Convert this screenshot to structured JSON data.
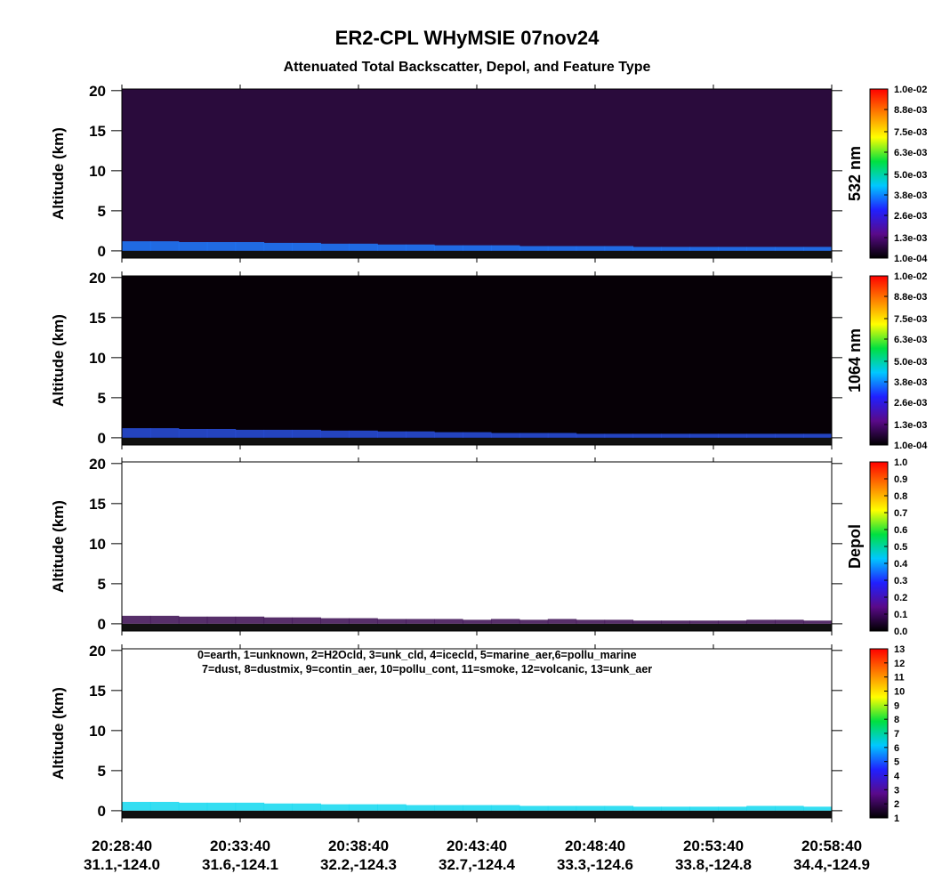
{
  "title": "ER2-CPL WHyMSIE 07nov24",
  "subtitle": "Attenuated Total Backscatter, Depol, and Feature Type",
  "xticks": [
    {
      "time": "20:28:40",
      "location": "31.1,-124.0"
    },
    {
      "time": "20:33:40",
      "location": "31.6,-124.1"
    },
    {
      "time": "20:38:40",
      "location": "32.2,-124.3"
    },
    {
      "time": "20:43:40",
      "location": "32.7,-124.4"
    },
    {
      "time": "20:48:40",
      "location": "33.3,-124.6"
    },
    {
      "time": "20:53:40",
      "location": "33.8,-124.8"
    },
    {
      "time": "20:58:40",
      "location": "34.4,-124.9"
    }
  ],
  "chart_data": [
    {
      "type": "heatmap",
      "ylabel": "Altitude (km)",
      "ylim": [
        -0.9,
        20.2
      ],
      "yticks": [
        0,
        5,
        10,
        15,
        20
      ],
      "background": "#2a0b3c",
      "layer_color": "#1f7bff",
      "colormap": [
        "#000000",
        "#5a0a8a",
        "#2020ff",
        "#00c8ff",
        "#00e040",
        "#ffff00",
        "#ff8000",
        "#ff0000"
      ],
      "colorbar_label": "532 nm",
      "clim": [
        0.0001,
        0.01
      ],
      "cticks": [
        {
          "value": 0.0001,
          "label": "1.0e-04"
        },
        {
          "value": 0.0013,
          "label": "1.3e-03"
        },
        {
          "value": 0.0026,
          "label": "2.6e-03"
        },
        {
          "value": 0.0038,
          "label": "3.8e-03"
        },
        {
          "value": 0.005,
          "label": "5.0e-03"
        },
        {
          "value": 0.0063,
          "label": "6.3e-03"
        },
        {
          "value": 0.0075,
          "label": "7.5e-03"
        },
        {
          "value": 0.0088,
          "label": "8.8e-03"
        },
        {
          "value": 0.01,
          "label": "1.0e-02"
        }
      ],
      "layer_top": [
        1.2,
        1.2,
        1.1,
        1.1,
        1.1,
        1.0,
        1.0,
        0.9,
        0.9,
        0.8,
        0.8,
        0.7,
        0.7,
        0.7,
        0.6,
        0.6,
        0.6,
        0.6,
        0.5,
        0.5,
        0.5,
        0.5,
        0.5,
        0.5,
        0.5
      ]
    },
    {
      "type": "heatmap",
      "ylabel": "Altitude (km)",
      "ylim": [
        -0.9,
        20.2
      ],
      "yticks": [
        0,
        5,
        10,
        15,
        20
      ],
      "background": "#060006",
      "layer_color": "#2a50e0",
      "colormap": [
        "#000000",
        "#5a0a8a",
        "#2020ff",
        "#00c8ff",
        "#00e040",
        "#ffff00",
        "#ff8000",
        "#ff0000"
      ],
      "colorbar_label": "1064 nm",
      "clim": [
        0.0001,
        0.01
      ],
      "cticks": [
        {
          "value": 0.0001,
          "label": "1.0e-04"
        },
        {
          "value": 0.0013,
          "label": "1.3e-03"
        },
        {
          "value": 0.0026,
          "label": "2.6e-03"
        },
        {
          "value": 0.0038,
          "label": "3.8e-03"
        },
        {
          "value": 0.005,
          "label": "5.0e-03"
        },
        {
          "value": 0.0063,
          "label": "6.3e-03"
        },
        {
          "value": 0.0075,
          "label": "7.5e-03"
        },
        {
          "value": 0.0088,
          "label": "8.8e-03"
        },
        {
          "value": 0.01,
          "label": "1.0e-02"
        }
      ],
      "layer_top": [
        1.2,
        1.2,
        1.1,
        1.1,
        1.0,
        1.0,
        1.0,
        0.9,
        0.9,
        0.8,
        0.8,
        0.7,
        0.7,
        0.6,
        0.6,
        0.6,
        0.5,
        0.5,
        0.5,
        0.5,
        0.5,
        0.5,
        0.5,
        0.5,
        0.5
      ]
    },
    {
      "type": "heatmap",
      "ylabel": "Altitude (km)",
      "ylim": [
        -0.9,
        20.2
      ],
      "yticks": [
        0,
        5,
        10,
        15,
        20
      ],
      "background": "#ffffff",
      "layer_color": "#3a0a50",
      "colormap": [
        "#000000",
        "#5a0a8a",
        "#2020ff",
        "#00c8ff",
        "#00e040",
        "#ffff00",
        "#ff8000",
        "#ff0000"
      ],
      "colorbar_label": "Depol",
      "clim": [
        0,
        1
      ],
      "cticks": [
        {
          "value": 0,
          "label": "0.0"
        },
        0.1,
        0.2,
        0.3,
        0.4,
        0.5,
        0.6,
        0.7,
        0.8,
        0.9,
        {
          "value": 1,
          "label": "1.0"
        }
      ],
      "layer_top": [
        1.0,
        1.0,
        0.9,
        0.9,
        0.9,
        0.8,
        0.8,
        0.7,
        0.7,
        0.6,
        0.6,
        0.6,
        0.5,
        0.6,
        0.5,
        0.6,
        0.5,
        0.5,
        0.4,
        0.4,
        0.4,
        0.4,
        0.5,
        0.5,
        0.4
      ]
    },
    {
      "type": "heatmap",
      "ylabel": "Altitude (km)",
      "ylim": [
        -0.9,
        20.2
      ],
      "yticks": [
        0,
        5,
        10,
        15,
        20
      ],
      "background": "#ffffff",
      "layer_color": "#10d8f0",
      "colormap": [
        "#000000",
        "#5a0a8a",
        "#2020ff",
        "#00c8ff",
        "#00e040",
        "#ffff00",
        "#ff8000",
        "#ff0000"
      ],
      "colorbar_label": "",
      "clim": [
        1,
        13
      ],
      "cticks": [
        1,
        2,
        3,
        4,
        5,
        6,
        7,
        8,
        9,
        10,
        11,
        12,
        13
      ],
      "annotation": [
        "0=earth, 1=unknown, 2=H2Ocld, 3=unk_cld, 4=icecld, 5=marine_aer,6=pollu_marine",
        "7=dust, 8=dustmix, 9=contin_aer, 10=pollu_cont, 11=smoke, 12=volcanic, 13=unk_aer"
      ],
      "layer_top": [
        1.1,
        1.1,
        1.0,
        1.0,
        1.0,
        0.9,
        0.9,
        0.8,
        0.8,
        0.8,
        0.7,
        0.7,
        0.7,
        0.7,
        0.6,
        0.6,
        0.6,
        0.6,
        0.5,
        0.5,
        0.5,
        0.5,
        0.6,
        0.6,
        0.5
      ]
    }
  ]
}
